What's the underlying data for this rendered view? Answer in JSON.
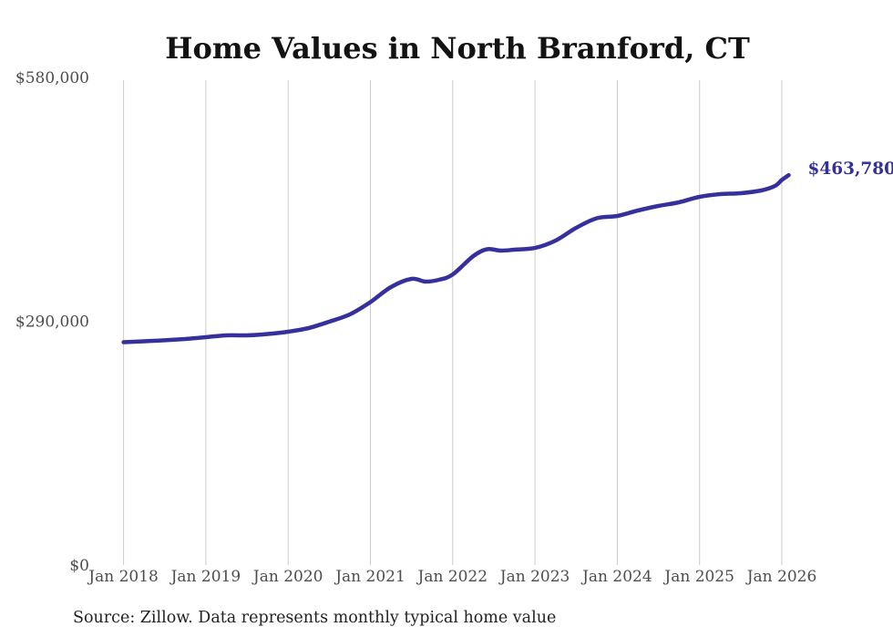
{
  "title": "Home Values in North Branford, CT",
  "source_note": "Source: Zillow. Data represents monthly typical home value",
  "colors": {
    "accent": "#35309c",
    "line": "#35309c",
    "grid": "#cbcbcb",
    "axis_text": "#4d4d4d",
    "title_text": "#131313",
    "source_text": "#222222",
    "background": "#ffffff"
  },
  "chart_data": {
    "type": "line",
    "title": "Home Values in North Branford, CT",
    "xlabel": "",
    "ylabel": "",
    "ylim": [
      0,
      580000
    ],
    "grid": "vertical-only",
    "legend_position": "none",
    "x_ticks": [
      "Jan 2018",
      "Jan 2019",
      "Jan 2020",
      "Jan 2021",
      "Jan 2022",
      "Jan 2023",
      "Jan 2024",
      "Jan 2025",
      "Jan 2026"
    ],
    "y_ticks": [
      {
        "value": 0,
        "label": "$0"
      },
      {
        "value": 290000,
        "label": "$290,000"
      },
      {
        "value": 580000,
        "label": "$580,000"
      }
    ],
    "last_point_label": "$463,780",
    "last_point_value": 463780,
    "series": [
      {
        "name": "Monthly typical home value",
        "color": "#35309c",
        "points": [
          [
            "2018-01",
            265100
          ],
          [
            "2018-04",
            266100
          ],
          [
            "2018-07",
            267300
          ],
          [
            "2018-10",
            268900
          ],
          [
            "2019-01",
            271000
          ],
          [
            "2019-04",
            273200
          ],
          [
            "2019-07",
            273200
          ],
          [
            "2019-10",
            274800
          ],
          [
            "2020-01",
            277500
          ],
          [
            "2020-04",
            281900
          ],
          [
            "2020-07",
            289500
          ],
          [
            "2020-10",
            298100
          ],
          [
            "2021-01",
            312800
          ],
          [
            "2021-04",
            330700
          ],
          [
            "2021-07",
            340400
          ],
          [
            "2021-09",
            337200
          ],
          [
            "2021-11",
            339300
          ],
          [
            "2022-01",
            345600
          ],
          [
            "2022-04",
            367500
          ],
          [
            "2022-06",
            375600
          ],
          [
            "2022-08",
            374000
          ],
          [
            "2022-10",
            375100
          ],
          [
            "2023-01",
            377200
          ],
          [
            "2023-04",
            385900
          ],
          [
            "2023-07",
            401100
          ],
          [
            "2023-10",
            412500
          ],
          [
            "2024-01",
            415200
          ],
          [
            "2024-04",
            421700
          ],
          [
            "2024-07",
            427100
          ],
          [
            "2024-10",
            431500
          ],
          [
            "2025-01",
            438000
          ],
          [
            "2025-04",
            441200
          ],
          [
            "2025-07",
            442300
          ],
          [
            "2025-10",
            445600
          ],
          [
            "2025-12",
            451000
          ],
          [
            "2026-01",
            458100
          ],
          [
            "2026-02",
            463780
          ]
        ]
      }
    ]
  }
}
